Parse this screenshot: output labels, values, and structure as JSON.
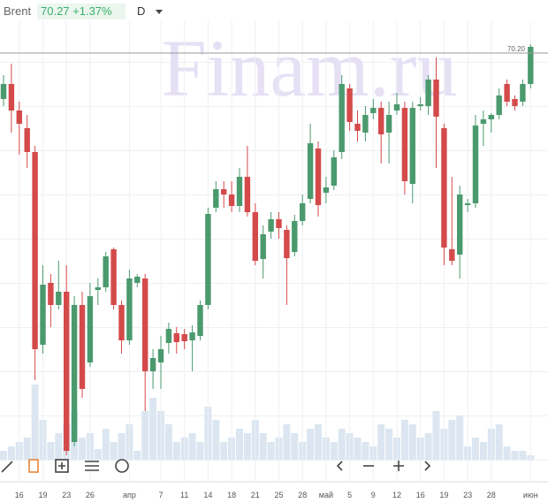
{
  "chart_data": {
    "type": "candlestick",
    "symbol": "Brent",
    "quote": "70.27 +1.37%",
    "interval": "D",
    "watermark": "Finam.ru",
    "price_line": 70.2,
    "price_line_label": "70.20",
    "up_color": "#4b9a6e",
    "down_color": "#d44a4a",
    "volume_color": "#dbe6f1",
    "ylim": [
      65.35,
      70.8
    ],
    "volume_lim": [
      0,
      100
    ],
    "categories": [
      null,
      null,
      "16",
      null,
      null,
      "19",
      null,
      null,
      "23",
      null,
      null,
      "26",
      null,
      null,
      null,
      null,
      "апр",
      null,
      null,
      null,
      "7",
      null,
      null,
      "11",
      null,
      null,
      "14",
      null,
      null,
      "18",
      null,
      null,
      "21",
      null,
      null,
      "25",
      null,
      null,
      "28",
      null,
      null,
      "май",
      null,
      null,
      "5",
      null,
      null,
      "9",
      null,
      null,
      "12",
      null,
      null,
      "16",
      null,
      null,
      "19",
      null,
      null,
      "23",
      null,
      null,
      "28",
      null,
      null,
      null,
      null,
      "июн"
    ],
    "open": [
      69.68,
      69.85,
      69.55,
      69.35,
      69.08,
      66.9,
      67.6,
      67.35,
      67.5,
      65.8,
      67.35,
      66.7,
      67.52,
      67.55,
      67.98,
      67.35,
      66.95,
      67.6,
      67.65,
      66.6,
      66.7,
      66.92,
      67.03,
      67.02,
      66.95,
      67.0,
      67.35,
      68.45,
      68.66,
      68.6,
      68.47,
      68.8,
      68.4,
      67.87,
      68.18,
      68.32,
      68.2,
      67.95,
      68.3,
      68.55,
      69.12,
      68.62,
      68.7,
      69.08,
      69.8,
      69.4,
      69.3,
      69.52,
      69.58,
      69.3,
      69.55,
      69.58,
      68.72,
      69.6,
      69.6,
      69.9,
      69.35,
      67.98,
      67.92,
      68.48,
      68.5,
      69.4,
      69.45,
      69.5,
      69.85,
      69.68,
      69.65,
      69.85
    ],
    "high": [
      69.95,
      70.08,
      69.65,
      69.5,
      69.15,
      67.8,
      67.7,
      67.85,
      67.8,
      67.45,
      67.5,
      67.6,
      67.65,
      67.95,
      68.0,
      67.4,
      67.75,
      67.7,
      67.7,
      66.85,
      67.0,
      67.15,
      67.1,
      67.08,
      67.12,
      67.4,
      68.45,
      68.75,
      68.75,
      68.75,
      68.9,
      69.15,
      68.5,
      68.25,
      68.4,
      68.4,
      68.25,
      68.37,
      68.6,
      69.4,
      69.2,
      68.8,
      69.1,
      69.95,
      69.85,
      69.55,
      69.6,
      69.68,
      69.65,
      69.65,
      69.75,
      69.65,
      69.65,
      69.7,
      69.95,
      70.15,
      69.4,
      68.8,
      68.7,
      68.55,
      69.5,
      69.55,
      69.52,
      69.8,
      69.9,
      69.72,
      69.9,
      70.3
    ],
    "low": [
      69.6,
      69.3,
      69.05,
      68.9,
      66.5,
      66.8,
      67.1,
      67.3,
      65.65,
      65.75,
      66.3,
      66.65,
      67.35,
      67.5,
      67.3,
      66.8,
      66.9,
      67.55,
      66.15,
      66.4,
      66.4,
      66.8,
      66.8,
      66.85,
      66.6,
      66.95,
      67.3,
      68.4,
      68.45,
      68.4,
      68.4,
      68.35,
      67.8,
      67.65,
      68.1,
      68.1,
      67.35,
      67.9,
      68.25,
      68.5,
      68.35,
      68.5,
      68.65,
      69.0,
      69.32,
      69.2,
      69.2,
      69.45,
      68.95,
      68.95,
      69.5,
      68.6,
      68.5,
      69.55,
      69.5,
      68.9,
      67.8,
      67.8,
      67.65,
      68.4,
      68.45,
      69.15,
      69.3,
      69.45,
      69.6,
      69.55,
      69.6,
      69.8
    ],
    "close": [
      69.85,
      69.55,
      69.4,
      69.08,
      66.85,
      67.58,
      67.35,
      67.5,
      65.7,
      67.35,
      66.4,
      67.45,
      67.55,
      67.9,
      67.35,
      66.95,
      67.65,
      67.67,
      66.6,
      66.75,
      66.85,
      67.08,
      66.93,
      66.94,
      67.04,
      67.35,
      68.38,
      68.66,
      68.6,
      68.47,
      68.8,
      68.4,
      67.85,
      68.15,
      68.32,
      68.22,
      67.88,
      68.3,
      68.5,
      69.18,
      68.48,
      68.68,
      69.02,
      69.85,
      69.42,
      69.32,
      69.5,
      69.58,
      69.28,
      69.5,
      69.62,
      68.75,
      69.58,
      69.62,
      69.9,
      69.48,
      68.0,
      67.85,
      68.6,
      68.5,
      69.38,
      69.45,
      69.5,
      69.72,
      69.65,
      69.6,
      69.85,
      70.27
    ],
    "volume": [
      10,
      15,
      20,
      25,
      85,
      45,
      20,
      30,
      40,
      55,
      25,
      30,
      12,
      35,
      20,
      30,
      40,
      10,
      55,
      70,
      55,
      40,
      20,
      25,
      30,
      20,
      60,
      45,
      20,
      25,
      35,
      30,
      45,
      30,
      20,
      25,
      40,
      30,
      20,
      35,
      40,
      25,
      20,
      35,
      30,
      25,
      20,
      15,
      40,
      35,
      25,
      45,
      40,
      25,
      30,
      55,
      35,
      45,
      50,
      15,
      25,
      20,
      35,
      40,
      15,
      10,
      10,
      5
    ]
  }
}
